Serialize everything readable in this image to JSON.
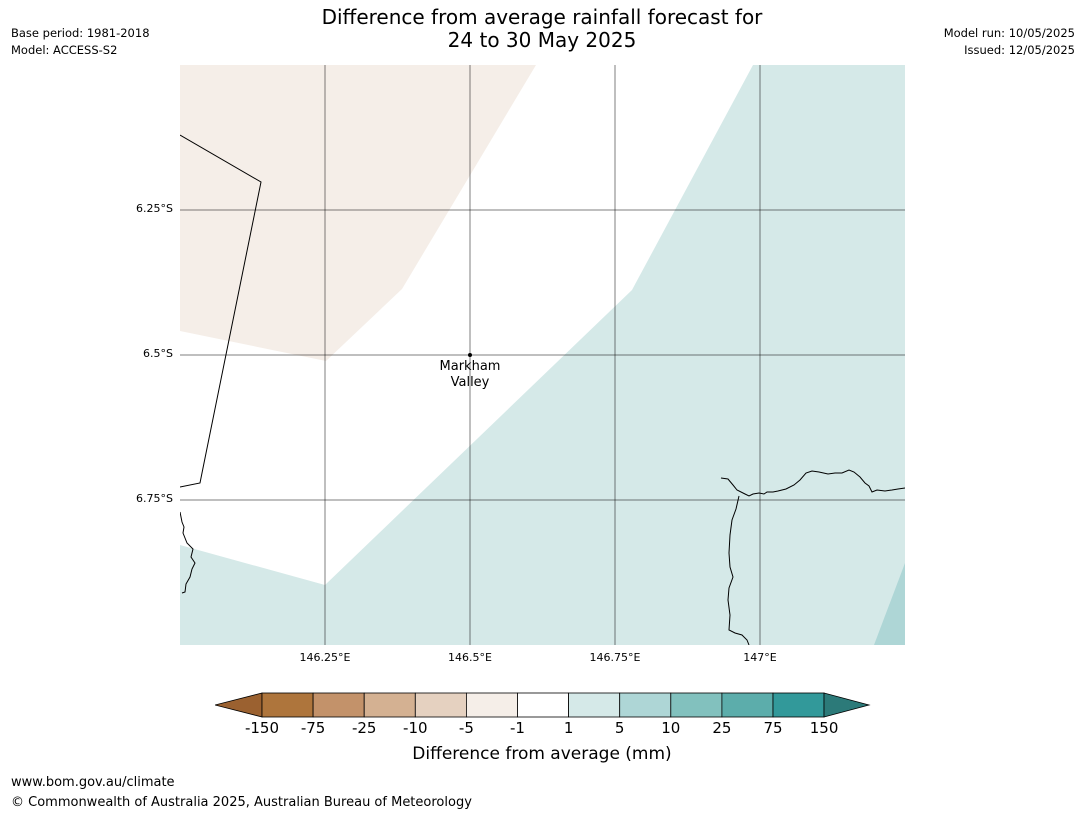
{
  "header": {
    "title_line1": "Difference from average rainfall forecast for",
    "title_line2": "24 to 30 May 2025",
    "base_period": "Base period: 1981-2018",
    "model": "Model: ACCESS-S2",
    "model_run": "Model run: 10/05/2025",
    "issued": "Issued: 12/05/2025"
  },
  "map": {
    "latitude_labels": [
      "6.25°S",
      "6.5°S",
      "6.75°S"
    ],
    "longitude_labels": [
      "146.25°E",
      "146.5°E",
      "146.75°E",
      "147°E"
    ],
    "place": {
      "name_line1": "Markham",
      "name_line2": "Valley"
    },
    "category_colors": {
      "neg1_to_neg5": "#f5eee8",
      "neg1_to_1": "#ffffff",
      "1_to_5": "#d5e9e8",
      "5_to_10": "#aed6d6"
    }
  },
  "legend": {
    "title": "Difference from average (mm)",
    "ticks": [
      "-150",
      "-75",
      "-25",
      "-10",
      "-5",
      "-1",
      "1",
      "5",
      "10",
      "25",
      "75",
      "150"
    ],
    "colors": [
      "#9b6130",
      "#ae753c",
      "#c3926a",
      "#d4b192",
      "#e5d1c0",
      "#f5eee8",
      "#ffffff",
      "#d5e9e8",
      "#aed6d6",
      "#82c1be",
      "#5cadab",
      "#32999a",
      "#2c7a79"
    ]
  },
  "footer": {
    "url": "www.bom.gov.au/climate",
    "copyright": "© Commonwealth of Australia 2025, Australian Bureau of Meteorology"
  }
}
